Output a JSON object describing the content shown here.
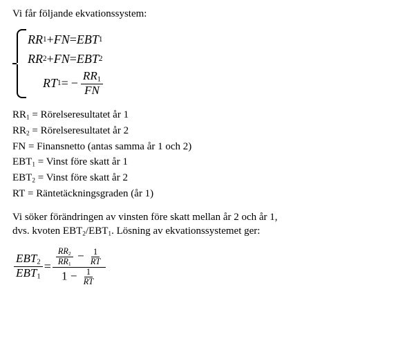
{
  "intro": "Vi får följande ekvationssystem:",
  "system": {
    "rows": [
      {
        "lhs": "RR",
        "lhs_sub": "1",
        "plus": " + ",
        "mid": "FN",
        "eq": " = ",
        "rhs": "EBT",
        "rhs_sub": "1"
      },
      {
        "lhs": "RR",
        "lhs_sub": "2",
        "plus": " + ",
        "mid": "FN",
        "eq": " = ",
        "rhs": "EBT",
        "rhs_sub": "2"
      }
    ],
    "row3": {
      "lhs": "RT",
      "lhs_sub": "1",
      "eq": " = ",
      "neg": "−",
      "num": "RR",
      "num_sub": "1",
      "den": "FN"
    }
  },
  "defs": [
    {
      "sym": "RR",
      "sub": "1",
      "eq": " = ",
      "desc": "Rörelseresultatet år 1"
    },
    {
      "sym": "RR",
      "sub": "2",
      "eq": " = ",
      "desc": "Rörelseresultatet år 2"
    },
    {
      "sym": "FN",
      "sub": "",
      "eq": " = ",
      "desc": "Finansnetto (antas samma år 1 och 2)"
    },
    {
      "sym": "EBT",
      "sub": "1",
      "eq": " = ",
      "desc": "Vinst före skatt år 1"
    },
    {
      "sym": "EBT",
      "sub": "2",
      "eq": " = ",
      "desc": "Vinst före skatt år 2"
    },
    {
      "sym": "RT",
      "sub": "",
      "eq": " = ",
      "desc": "Räntetäckningsgraden (år 1)"
    }
  ],
  "body2a": "Vi söker förändringen av vinsten före skatt mellan år 2 och år 1,",
  "body2b": "dvs. kvoten EBT",
  "body2b_sub1": "2",
  "body2b_mid": "/EBT",
  "body2b_sub2": "1",
  "body2b_end": ".  Lösning av ekvationssystemet ger:",
  "result": {
    "lhs_num": "EBT",
    "lhs_num_sub": "2",
    "lhs_den": "EBT",
    "lhs_den_sub": "1",
    "eq": " = ",
    "rhs": {
      "num_left_num": "RR",
      "num_left_num_sub": "2",
      "num_left_den": "RR",
      "num_left_den_sub": "1",
      "minus": " − ",
      "num_right_num": "1",
      "num_right_den": "RT",
      "den_left": "1",
      "den_minus": " − ",
      "den_right_num": "1",
      "den_right_den": "RT"
    }
  }
}
